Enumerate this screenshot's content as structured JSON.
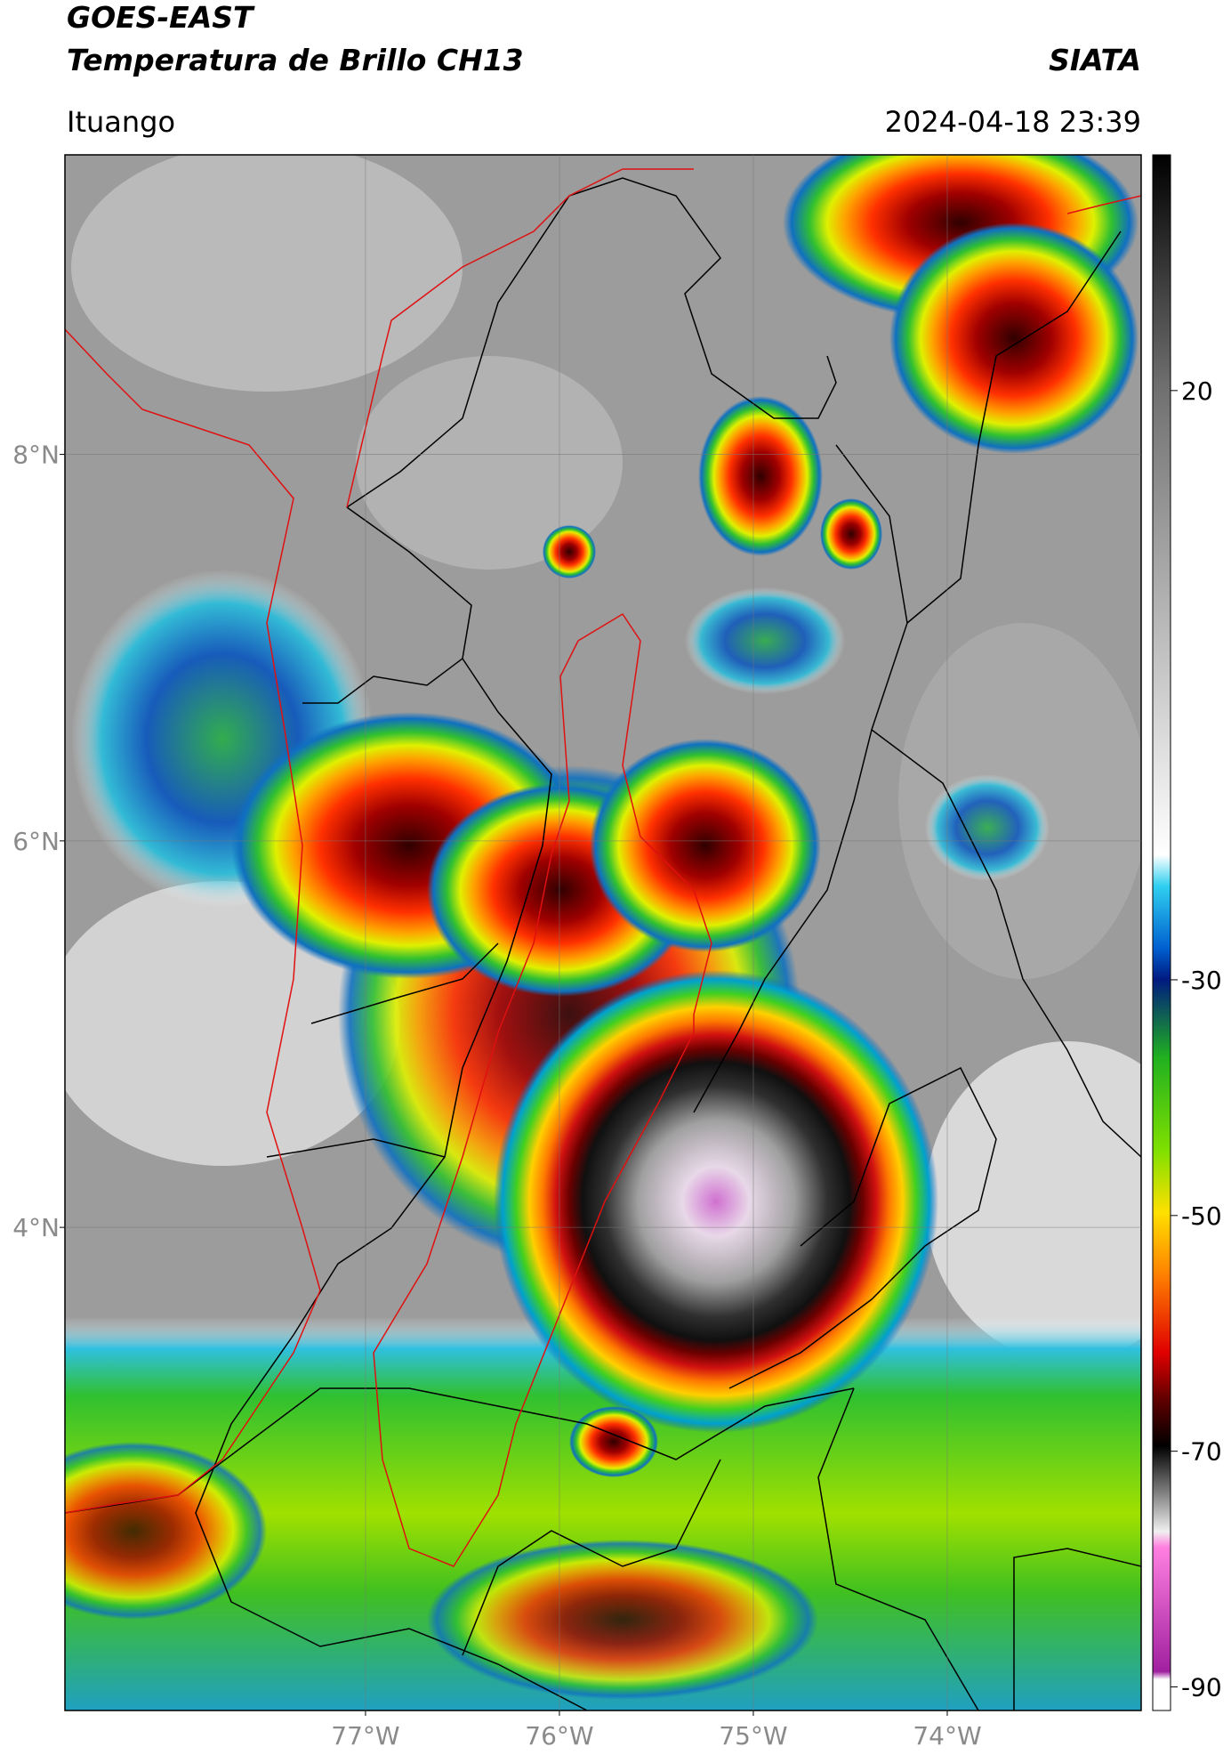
{
  "header": {
    "title": "GOES-EAST",
    "subtitle": "Temperatura de Brillo CH13",
    "source": "SIATA",
    "location": "Ituango",
    "timestamp": "2024-04-18 23:39"
  },
  "map": {
    "xlim": [
      -78.55,
      -73.0
    ],
    "ylim": [
      1.5,
      9.55
    ],
    "xticks": [
      {
        "value": -77,
        "label": "77°W"
      },
      {
        "value": -76,
        "label": "76°W"
      },
      {
        "value": -75,
        "label": "75°W"
      },
      {
        "value": -74,
        "label": "74°W"
      }
    ],
    "yticks": [
      {
        "value": 8,
        "label": "8°N"
      },
      {
        "value": 6,
        "label": "6°N"
      },
      {
        "value": 4,
        "label": "4°N"
      }
    ],
    "grid": true
  },
  "colorbar": {
    "lim": [
      -92,
      40
    ],
    "ticks": [
      20,
      -30,
      -50,
      -70,
      -90
    ]
  }
}
